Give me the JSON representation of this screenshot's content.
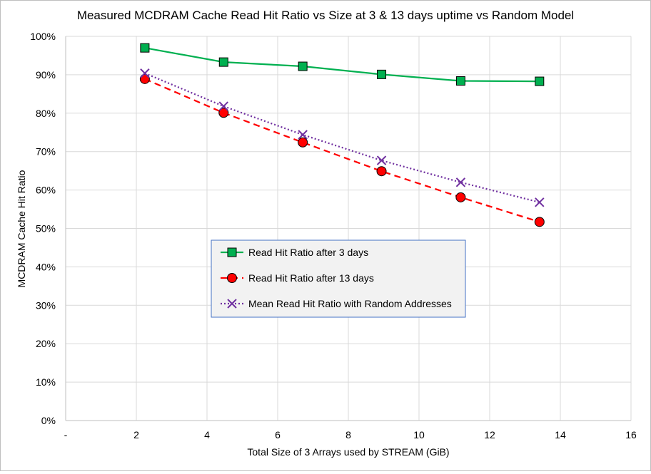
{
  "chart_data": {
    "type": "line",
    "title": "Measured MCDRAM Cache Read Hit Ratio vs Size at 3 & 13 days uptime vs Random Model",
    "xlabel": "Total Size of 3 Arrays used by STREAM (GiB)",
    "ylabel": "MCDRAM Cache Hit Ratio",
    "xlim": [
      0,
      16
    ],
    "ylim": [
      0,
      1
    ],
    "x_ticks": [
      0,
      2,
      4,
      6,
      8,
      10,
      12,
      14,
      16
    ],
    "x_tick_labels": [
      "-",
      "2",
      "4",
      "6",
      "8",
      "10",
      "12",
      "14",
      "16"
    ],
    "y_ticks": [
      0,
      0.1,
      0.2,
      0.3,
      0.4,
      0.5,
      0.6,
      0.7,
      0.8,
      0.9,
      1.0
    ],
    "y_tick_labels": [
      "0%",
      "10%",
      "20%",
      "30%",
      "40%",
      "50%",
      "60%",
      "70%",
      "80%",
      "90%",
      "100%"
    ],
    "grid": "vertical and horizontal major gridlines",
    "legend_position": "center",
    "series": [
      {
        "name": "Read Hit Ratio after 3 days",
        "color": "#00b050",
        "marker": "square",
        "marker_fill": "#00b050",
        "line_style": "solid",
        "x": [
          2.24,
          4.47,
          6.71,
          8.94,
          11.18,
          13.41
        ],
        "y": [
          0.97,
          0.933,
          0.922,
          0.901,
          0.884,
          0.883
        ]
      },
      {
        "name": "Read Hit Ratio after 13 days",
        "color": "#ff0000",
        "marker": "circle",
        "marker_fill": "#ff0000",
        "line_style": "dashed",
        "x": [
          2.24,
          4.47,
          6.71,
          8.94,
          11.18,
          13.41
        ],
        "y": [
          0.889,
          0.801,
          0.724,
          0.649,
          0.581,
          0.517
        ]
      },
      {
        "name": "Mean Read Hit Ratio with Random Addresses",
        "color": "#7030a0",
        "marker": "x",
        "marker_fill": "none",
        "line_style": "dotted",
        "x": [
          2.24,
          4.47,
          6.71,
          8.94,
          11.18,
          13.41
        ],
        "y": [
          0.904,
          0.818,
          0.744,
          0.677,
          0.62,
          0.568
        ]
      }
    ]
  }
}
